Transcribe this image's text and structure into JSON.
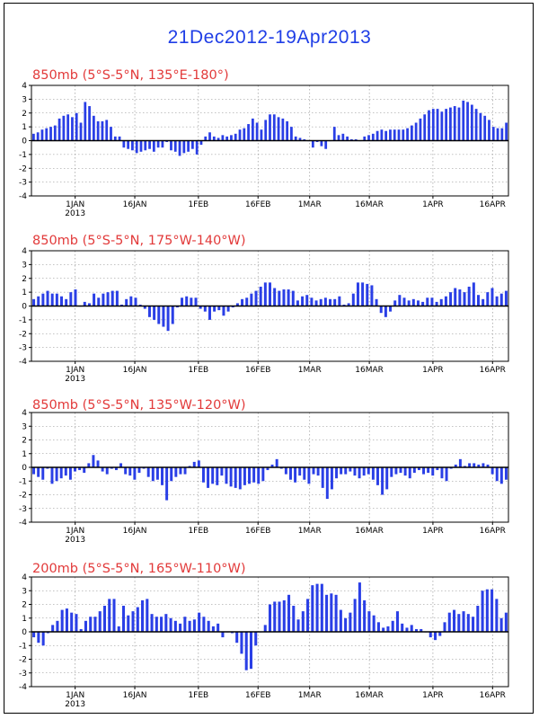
{
  "title": "21Dec2012-19Apr2013",
  "colors": {
    "bar": "#2a3fe6",
    "title": "#1f3ee6",
    "panel_title": "#e23a3a",
    "grid": "#888888"
  },
  "x_ticks": [
    "1JAN",
    "16JAN",
    "1FEB",
    "16FEB",
    "1MAR",
    "16MAR",
    "1APR",
    "16APR"
  ],
  "year_label": "2013",
  "chart_data": [
    {
      "type": "bar",
      "title": "850mb (5°S-5°N, 135°E-180°)",
      "x_start": "2012-12-21",
      "ylim": [
        -4,
        4
      ],
      "yticks": [
        -4,
        -3,
        -2,
        -1,
        0,
        1,
        2,
        3,
        4
      ],
      "grid": true,
      "values": [
        0.5,
        0.6,
        0.8,
        0.9,
        1.0,
        1.1,
        1.6,
        1.8,
        1.9,
        1.7,
        2.0,
        1.3,
        2.8,
        2.5,
        1.8,
        1.4,
        1.4,
        1.5,
        1.0,
        0.3,
        0.3,
        -0.5,
        -0.6,
        -0.7,
        -0.9,
        -0.8,
        -0.7,
        -0.6,
        -0.8,
        -0.5,
        -0.5,
        -0.1,
        -0.7,
        -0.8,
        -1.1,
        -0.9,
        -0.8,
        -0.6,
        -1.0,
        -0.3,
        0.3,
        0.6,
        0.3,
        0.2,
        0.4,
        0.3,
        0.4,
        0.5,
        0.8,
        0.9,
        1.2,
        1.6,
        1.3,
        0.8,
        1.5,
        1.9,
        1.9,
        1.7,
        1.6,
        1.4,
        1.0,
        0.3,
        0.2,
        0.1,
        0.0,
        -0.5,
        -0.1,
        -0.4,
        -0.6,
        0.0,
        1.0,
        0.4,
        0.5,
        0.3,
        0.1,
        0.1,
        0.0,
        0.3,
        0.4,
        0.5,
        0.7,
        0.8,
        0.7,
        0.8,
        0.8,
        0.8,
        0.8,
        0.9,
        1.1,
        1.3,
        1.6,
        1.9,
        2.2,
        2.3,
        2.3,
        2.1,
        2.3,
        2.4,
        2.5,
        2.4,
        2.9,
        2.8,
        2.6,
        2.3,
        2.0,
        1.8,
        1.5,
        1.0,
        0.9,
        0.9,
        1.3
      ]
    },
    {
      "type": "bar",
      "title": "850mb (5°S-5°N, 175°W-140°W)",
      "x_start": "2012-12-21",
      "ylim": [
        -4,
        4
      ],
      "yticks": [
        -4,
        -3,
        -2,
        -1,
        0,
        1,
        2,
        3,
        4
      ],
      "grid": true,
      "values": [
        0.5,
        0.7,
        0.9,
        1.1,
        0.9,
        0.9,
        0.7,
        0.5,
        1.0,
        1.2,
        0.0,
        0.3,
        0.2,
        0.9,
        0.6,
        0.9,
        1.0,
        1.1,
        1.1,
        0.1,
        0.5,
        0.7,
        0.6,
        0.1,
        -0.2,
        -0.8,
        -1.0,
        -1.3,
        -1.5,
        -1.8,
        -1.3,
        -0.1,
        0.6,
        0.7,
        0.6,
        0.6,
        -0.2,
        -0.4,
        -1.0,
        -0.4,
        -0.3,
        -0.7,
        -0.4,
        -0.1,
        0.2,
        0.5,
        0.6,
        0.9,
        1.1,
        1.4,
        1.7,
        1.7,
        1.3,
        1.1,
        1.2,
        1.2,
        1.1,
        0.4,
        0.7,
        0.8,
        0.6,
        0.4,
        0.5,
        0.6,
        0.5,
        0.5,
        0.7,
        0.1,
        0.2,
        0.9,
        1.7,
        1.7,
        1.6,
        1.5,
        0.5,
        -0.5,
        -0.8,
        -0.4,
        0.4,
        0.8,
        0.6,
        0.4,
        0.5,
        0.4,
        0.3,
        0.6,
        0.6,
        0.3,
        0.5,
        0.7,
        1.0,
        1.3,
        1.2,
        1.0,
        1.4,
        1.7,
        0.8,
        0.5,
        1.0,
        1.3,
        0.7,
        0.9,
        1.1
      ]
    },
    {
      "type": "bar",
      "title": "850mb (5°S-5°N, 135°W-120°W)",
      "x_start": "2012-12-21",
      "ylim": [
        -4,
        4
      ],
      "yticks": [
        -4,
        -3,
        -2,
        -1,
        0,
        1,
        2,
        3,
        4
      ],
      "grid": true,
      "values": [
        -0.5,
        -0.7,
        -0.9,
        -0.1,
        -1.2,
        -1.0,
        -0.8,
        -0.6,
        -0.9,
        -0.3,
        -0.2,
        -0.4,
        0.3,
        0.9,
        0.5,
        -0.3,
        -0.5,
        -0.1,
        -0.2,
        0.3,
        -0.5,
        -0.6,
        -0.9,
        -0.4,
        -0.1,
        -0.7,
        -1.0,
        -0.9,
        -1.3,
        -2.4,
        -1.0,
        -0.7,
        -0.5,
        -0.5,
        0.1,
        0.4,
        0.5,
        -1.1,
        -1.5,
        -1.2,
        -1.3,
        -0.6,
        -1.2,
        -1.4,
        -1.5,
        -1.6,
        -1.3,
        -1.2,
        -1.1,
        -1.2,
        -1.0,
        -0.2,
        0.2,
        0.6,
        -0.1,
        -0.5,
        -0.9,
        -1.1,
        -0.6,
        -0.9,
        -1.2,
        -0.5,
        -0.6,
        -1.5,
        -2.3,
        -1.6,
        -0.8,
        -0.5,
        -0.5,
        -0.3,
        -0.6,
        -0.8,
        -0.6,
        -0.5,
        -0.9,
        -1.3,
        -2.0,
        -1.6,
        -0.7,
        -0.5,
        -0.4,
        -0.6,
        -0.8,
        -0.4,
        -0.2,
        -0.5,
        -0.4,
        -0.6,
        -0.2,
        -0.8,
        -1.0,
        -0.1,
        0.2,
        0.6,
        0.1,
        0.3,
        0.3,
        0.2,
        0.3,
        0.2,
        -0.5,
        -1.0,
        -1.2,
        -0.9
      ]
    },
    {
      "type": "bar",
      "title": "200mb (5°S-5°N, 165°W-110°W)",
      "x_start": "2012-12-21",
      "ylim": [
        -4,
        4
      ],
      "yticks": [
        -4,
        -3,
        -2,
        -1,
        0,
        1,
        2,
        3,
        4
      ],
      "grid": true,
      "values": [
        -0.4,
        -0.8,
        -1.0,
        -0.1,
        0.5,
        0.8,
        1.6,
        1.7,
        1.4,
        1.3,
        0.2,
        0.8,
        1.1,
        1.1,
        1.5,
        1.9,
        2.4,
        2.4,
        0.4,
        1.9,
        1.2,
        1.5,
        1.8,
        2.3,
        2.4,
        1.3,
        1.1,
        1.1,
        1.3,
        1.0,
        0.8,
        0.6,
        1.1,
        0.8,
        0.9,
        1.4,
        1.1,
        0.8,
        0.4,
        0.6,
        -0.4,
        0.0,
        -0.1,
        -0.8,
        -1.6,
        -2.8,
        -2.7,
        -1.0,
        0.0,
        0.5,
        2.0,
        2.2,
        2.2,
        2.3,
        2.7,
        1.9,
        0.9,
        1.5,
        2.4,
        3.4,
        3.5,
        3.5,
        2.7,
        2.8,
        2.7,
        1.6,
        1.0,
        1.4,
        2.4,
        3.6,
        2.3,
        1.5,
        1.2,
        0.7,
        0.3,
        0.4,
        0.8,
        1.5,
        0.6,
        0.3,
        0.5,
        0.2,
        0.2,
        0.0,
        -0.4,
        -0.6,
        -0.3,
        0.7,
        1.4,
        1.6,
        1.3,
        1.5,
        1.3,
        1.1,
        1.9,
        3.0,
        3.1,
        3.1,
        2.4,
        1.0,
        1.4
      ]
    }
  ]
}
